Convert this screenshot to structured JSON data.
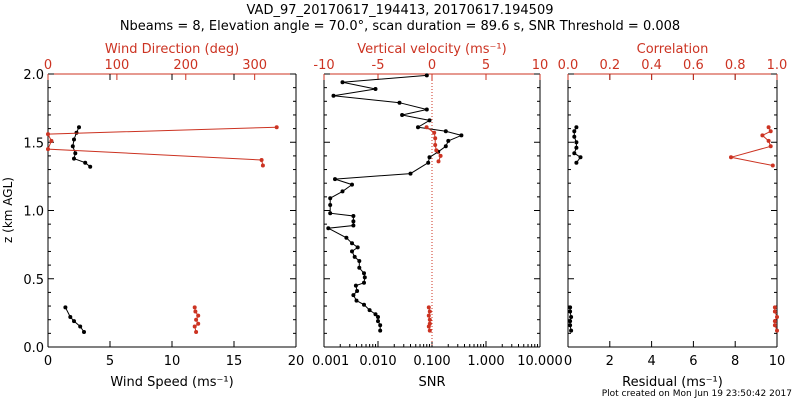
{
  "title_line1": "VAD_97_20170617_194413, 20170617.194509",
  "title_line2": "Nbeams = 8, Elevation angle = 70.0°, scan duration = 89.6 s, SNR Threshold = 0.008",
  "footer": "Plot created on Mon Jun 19 23:50:42 2017",
  "colors": {
    "black": "#000000",
    "red": "#cc3322",
    "background": "#ffffff"
  },
  "chart_data": [
    {
      "type": "line",
      "panel": "wind",
      "xlabel": "Wind Speed (ms⁻¹)",
      "ylabel": "z (km AGL)",
      "xlim": [
        0,
        20
      ],
      "ylim": [
        0,
        2
      ],
      "x_ticks": [
        "0",
        "5",
        "10",
        "15",
        "20"
      ],
      "y_ticks": [
        "0.0",
        "0.5",
        "1.0",
        "1.5",
        "2.0"
      ],
      "top_axis": {
        "label": "Wind Direction (deg)",
        "lim": [
          0,
          360
        ],
        "ticks": [
          "0",
          "100",
          "200",
          "300"
        ],
        "color": "#cc3322"
      },
      "series": [
        {
          "axis": "bottom",
          "color": "#000000",
          "segments": [
            [
              [
                1.4,
                0.29
              ],
              [
                1.8,
                0.22
              ],
              [
                2.1,
                0.19
              ],
              [
                2.6,
                0.15
              ],
              [
                2.9,
                0.11
              ]
            ],
            [
              [
                2.5,
                1.61
              ],
              [
                2.3,
                1.57
              ],
              [
                2.1,
                1.52
              ],
              [
                2.0,
                1.47
              ],
              [
                2.2,
                1.42
              ],
              [
                2.1,
                1.38
              ],
              [
                3.0,
                1.35
              ],
              [
                3.4,
                1.32
              ]
            ]
          ]
        },
        {
          "axis": "top",
          "color": "#cc3322",
          "segments": [
            [
              [
                213,
                0.29
              ],
              [
                214,
                0.26
              ],
              [
                218,
                0.23
              ],
              [
                215,
                0.2
              ],
              [
                218,
                0.17
              ],
              [
                213,
                0.15
              ],
              [
                215,
                0.11
              ]
            ],
            [
              [
                332,
                1.61
              ],
              [
                0,
                1.56
              ],
              [
                5,
                1.51
              ],
              [
                0,
                1.45
              ],
              [
                310,
                1.37
              ],
              [
                312,
                1.33
              ]
            ]
          ]
        }
      ]
    },
    {
      "type": "line",
      "panel": "snr",
      "xlabel": "SNR",
      "xscale": "log",
      "xlim": [
        0.001,
        10
      ],
      "ylim": [
        0,
        2
      ],
      "x_ticks": [
        "0.001",
        "0.010",
        "0.100",
        "1.000",
        "10.000"
      ],
      "top_axis": {
        "label": "Vertical velocity (ms⁻¹)",
        "lim": [
          -10,
          10
        ],
        "ticks": [
          "-10",
          "-5",
          "0",
          "5",
          "10"
        ],
        "color": "#cc3322"
      },
      "reference_line": {
        "x": 0.1,
        "color": "#cc3322",
        "style": "dotted"
      },
      "series": [
        {
          "axis": "bottom",
          "color": "#000000",
          "points": [
            [
              0.08,
              1.99
            ],
            [
              0.0022,
              1.94
            ],
            [
              0.009,
              1.89
            ],
            [
              0.0015,
              1.84
            ],
            [
              0.025,
              1.79
            ],
            [
              0.08,
              1.74
            ],
            [
              0.028,
              1.7
            ],
            [
              0.09,
              1.66
            ],
            [
              0.055,
              1.61
            ],
            [
              0.18,
              1.58
            ],
            [
              0.35,
              1.55
            ],
            [
              0.2,
              1.51
            ],
            [
              0.18,
              1.47
            ],
            [
              0.13,
              1.43
            ],
            [
              0.09,
              1.39
            ],
            [
              0.085,
              1.35
            ],
            [
              0.04,
              1.27
            ],
            [
              0.0016,
              1.23
            ],
            [
              0.0033,
              1.19
            ],
            [
              0.0022,
              1.14
            ],
            [
              0.0013,
              1.09
            ],
            [
              0.0013,
              1.04
            ],
            [
              0.0013,
              0.98
            ],
            [
              0.0035,
              0.96
            ],
            [
              0.0035,
              0.92
            ],
            [
              0.0035,
              0.89
            ],
            [
              0.0012,
              0.87
            ],
            [
              0.0026,
              0.8
            ],
            [
              0.0033,
              0.76
            ],
            [
              0.0042,
              0.73
            ],
            [
              0.0033,
              0.7
            ],
            [
              0.0037,
              0.66
            ],
            [
              0.0045,
              0.63
            ],
            [
              0.0045,
              0.58
            ],
            [
              0.0055,
              0.54
            ],
            [
              0.0057,
              0.51
            ],
            [
              0.0055,
              0.47
            ],
            [
              0.0039,
              0.45
            ],
            [
              0.0041,
              0.41
            ],
            [
              0.0035,
              0.38
            ],
            [
              0.004,
              0.34
            ],
            [
              0.0055,
              0.31
            ],
            [
              0.007,
              0.27
            ],
            [
              0.009,
              0.24
            ],
            [
              0.01,
              0.22
            ],
            [
              0.01,
              0.19
            ],
            [
              0.011,
              0.16
            ],
            [
              0.011,
              0.12
            ]
          ]
        },
        {
          "axis": "top",
          "color": "#cc3322",
          "segments": [
            [
              [
                -0.5,
                1.61
              ],
              [
                0.2,
                1.57
              ],
              [
                0.3,
                1.53
              ],
              [
                0.3,
                1.48
              ],
              [
                0.4,
                1.44
              ],
              [
                0.8,
                1.4
              ],
              [
                0.6,
                1.36
              ]
            ],
            [
              [
                -0.3,
                0.29
              ],
              [
                -0.2,
                0.26
              ],
              [
                -0.3,
                0.23
              ],
              [
                -0.2,
                0.2
              ],
              [
                -0.2,
                0.17
              ],
              [
                -0.3,
                0.15
              ],
              [
                -0.2,
                0.12
              ]
            ]
          ]
        }
      ]
    },
    {
      "type": "line",
      "panel": "residual",
      "xlabel": "Residual (ms⁻¹)",
      "xlim": [
        0,
        10
      ],
      "ylim": [
        0,
        2
      ],
      "x_ticks": [
        "0",
        "2",
        "4",
        "6",
        "8",
        "10"
      ],
      "top_axis": {
        "label": "Correlation",
        "lim": [
          0,
          1
        ],
        "ticks": [
          "0.0",
          "0.2",
          "0.4",
          "0.6",
          "0.8",
          "1.0"
        ],
        "color": "#cc3322"
      },
      "series": [
        {
          "axis": "bottom",
          "color": "#000000",
          "segments": [
            [
              [
                0.4,
                1.61
              ],
              [
                0.3,
                1.58
              ],
              [
                0.3,
                1.54
              ],
              [
                0.4,
                1.5
              ],
              [
                0.4,
                1.46
              ],
              [
                0.3,
                1.42
              ],
              [
                0.6,
                1.39
              ],
              [
                0.4,
                1.35
              ]
            ],
            [
              [
                0.1,
                0.29
              ],
              [
                0.1,
                0.26
              ],
              [
                0.15,
                0.22
              ],
              [
                0.1,
                0.19
              ],
              [
                0.1,
                0.16
              ],
              [
                0.15,
                0.12
              ]
            ]
          ]
        },
        {
          "axis": "top",
          "color": "#cc3322",
          "segments": [
            [
              [
                0.96,
                1.61
              ],
              [
                0.97,
                1.58
              ],
              [
                0.93,
                1.55
              ],
              [
                0.96,
                1.51
              ],
              [
                0.97,
                1.47
              ],
              [
                0.78,
                1.39
              ],
              [
                0.98,
                1.33
              ]
            ],
            [
              [
                0.99,
                0.29
              ],
              [
                0.99,
                0.26
              ],
              [
                1.0,
                0.22
              ],
              [
                0.99,
                0.19
              ],
              [
                0.99,
                0.16
              ],
              [
                1.0,
                0.12
              ]
            ]
          ]
        }
      ]
    }
  ]
}
